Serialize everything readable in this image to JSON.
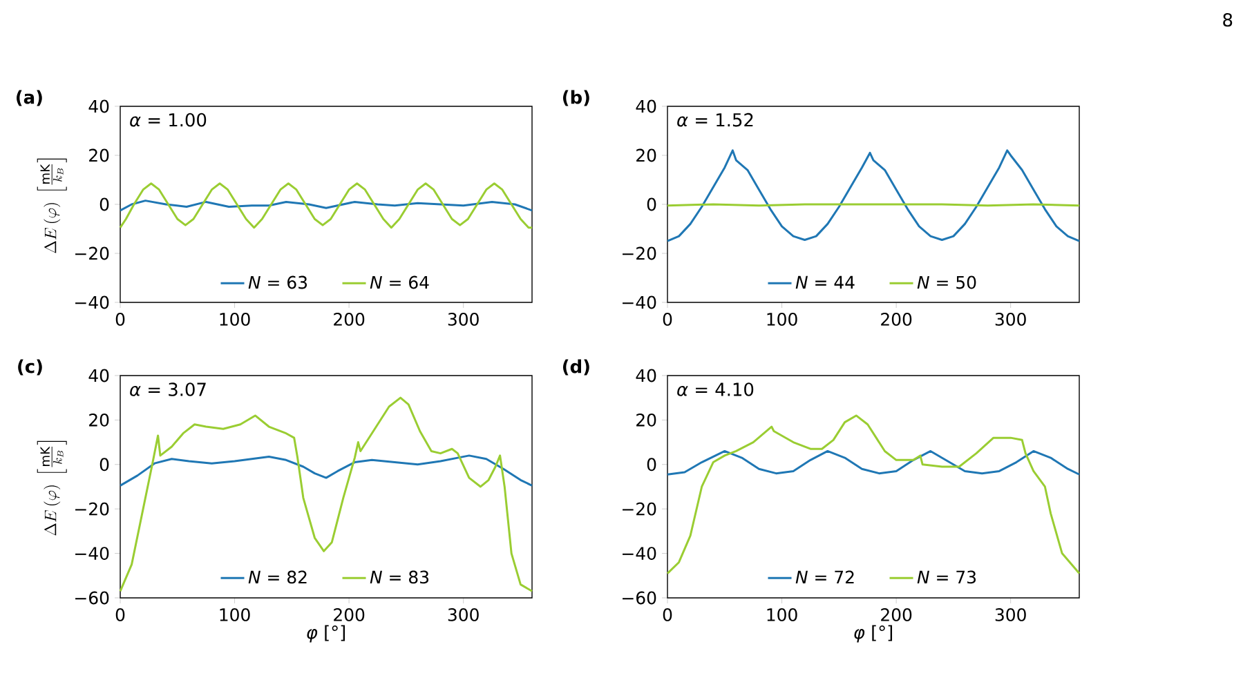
{
  "chart_data": [
    {
      "type": "line",
      "title": "(a)",
      "ylabel": "\\Delta E\\,(\\varphi)\\;\\left[\\frac{\\mathrm{mK}}{k_B}\\right]",
      "annotations": [
        "*α* = 1.00"
      ],
      "legend": "bottom",
      "xlim": [
        0,
        360
      ],
      "ylim": [
        -40,
        40
      ],
      "xticks": [
        0,
        100,
        200,
        300
      ],
      "yticks": [
        {
          "value": -40,
          "label": "−40"
        },
        {
          "value": -20,
          "label": "−20"
        },
        0,
        20,
        40
      ],
      "series": [
        {
          "name": "*N* = 63",
          "color": "#1f77b4",
          "x": [
            0,
            10,
            22,
            40,
            58,
            75,
            95,
            115,
            130,
            145,
            165,
            180,
            205,
            225,
            240,
            260,
            280,
            300,
            325,
            345,
            360
          ],
          "values": [
            -2.5,
            0,
            1.5,
            0,
            -1,
            1,
            -1,
            -0.5,
            -0.5,
            1,
            0,
            -1.5,
            1,
            0,
            -0.5,
            0.5,
            0,
            -0.5,
            1,
            0,
            -2.5
          ]
        },
        {
          "name": "*N* = 64",
          "color": "#9acd32",
          "x": [
            0,
            5,
            12,
            20,
            27,
            34,
            42,
            50,
            57,
            64,
            72,
            80,
            87,
            94,
            102,
            110,
            117,
            124,
            132,
            140,
            147,
            154,
            162,
            170,
            177,
            184,
            192,
            200,
            207,
            214,
            222,
            230,
            237,
            244,
            252,
            260,
            267,
            274,
            282,
            290,
            297,
            304,
            312,
            320,
            327,
            334,
            342,
            350,
            357,
            360
          ],
          "values": [
            -9.5,
            -6,
            0,
            6,
            8.5,
            6,
            0,
            -6,
            -8.5,
            -6,
            0,
            6,
            8.5,
            6,
            0,
            -6,
            -9.5,
            -6,
            0,
            6,
            8.5,
            6,
            0,
            -6,
            -8.5,
            -6,
            0,
            6,
            8.5,
            6,
            0,
            -6,
            -9.5,
            -6,
            0,
            6,
            8.5,
            6,
            0,
            -6,
            -8.5,
            -6,
            0,
            6,
            8.5,
            6,
            0,
            -6,
            -9.5,
            -9.5
          ]
        }
      ]
    },
    {
      "type": "line",
      "title": "(b)",
      "annotations": [
        "*α* = 1.52",
        "8"
      ],
      "legend": "bottom",
      "xlim": [
        0,
        360
      ],
      "ylim": [
        -40,
        40
      ],
      "xticks": [
        0,
        100,
        200,
        300
      ],
      "yticks": [
        {
          "value": -40,
          "label": "−40"
        },
        {
          "value": -20,
          "label": "−20"
        },
        0,
        20,
        40
      ],
      "series": [
        {
          "name": "*N* = 44",
          "color": "#1f77b4",
          "x": [
            0,
            10,
            20,
            30,
            40,
            50,
            57,
            60,
            70,
            80,
            90,
            100,
            110,
            120,
            130,
            140,
            150,
            160,
            170,
            177,
            180,
            190,
            200,
            210,
            220,
            230,
            240,
            250,
            260,
            270,
            280,
            290,
            297,
            300,
            310,
            320,
            330,
            340,
            350,
            360
          ],
          "values": [
            -15,
            -13,
            -8,
            -1,
            7,
            15,
            22,
            18,
            14,
            6,
            -2,
            -9,
            -13,
            -14.5,
            -13,
            -8,
            -1,
            7,
            15,
            21,
            18,
            14,
            6,
            -2,
            -9,
            -13,
            -14.5,
            -13,
            -8,
            -1,
            7,
            15,
            22,
            20,
            14,
            6,
            -2,
            -9,
            -13,
            -15
          ]
        },
        {
          "name": "*N* = 50",
          "color": "#9acd32",
          "x": [
            0,
            40,
            80,
            120,
            160,
            200,
            240,
            280,
            320,
            360
          ],
          "values": [
            -0.5,
            0,
            -0.5,
            0,
            0,
            0,
            0,
            -0.5,
            0,
            -0.5
          ]
        }
      ]
    },
    {
      "type": "line",
      "title": "(c)",
      "xlabel": "*φ* [°]",
      "ylabel": "\\Delta E\\,(\\varphi)\\;\\left[\\frac{\\mathrm{mK}}{k_B}\\right]",
      "annotations": [
        "*α* = 3.07"
      ],
      "legend": "bottom",
      "xlim": [
        0,
        360
      ],
      "ylim": [
        -60,
        40
      ],
      "xticks": [
        0,
        100,
        200,
        300
      ],
      "yticks": [
        {
          "value": -60,
          "label": "−60"
        },
        {
          "value": -40,
          "label": "−40"
        },
        {
          "value": -20,
          "label": "−20"
        },
        0,
        20,
        40
      ],
      "series": [
        {
          "name": "*N* = 82",
          "color": "#1f77b4",
          "x": [
            0,
            15,
            30,
            45,
            60,
            80,
            100,
            115,
            130,
            145,
            160,
            170,
            180,
            190,
            205,
            220,
            240,
            260,
            280,
            295,
            305,
            320,
            335,
            350,
            360
          ],
          "values": [
            -9.5,
            -5,
            0.5,
            2.5,
            1.5,
            0.5,
            1.5,
            2.5,
            3.5,
            2,
            -1,
            -4,
            -6,
            -3,
            1,
            2,
            1,
            0,
            1.5,
            3,
            4,
            2.5,
            -2,
            -7,
            -9.5
          ]
        },
        {
          "name": "*N* = 83",
          "color": "#9acd32",
          "x": [
            0,
            10,
            20,
            28,
            33,
            35,
            45,
            55,
            65,
            75,
            90,
            105,
            118,
            130,
            145,
            152,
            155,
            160,
            170,
            178,
            185,
            195,
            205,
            208,
            210,
            220,
            235,
            245,
            252,
            262,
            272,
            280,
            290,
            295,
            305,
            315,
            322,
            328,
            332,
            336,
            342,
            350,
            360
          ],
          "values": [
            -57,
            -45,
            -20,
            0,
            13,
            4,
            8,
            14,
            18,
            17,
            16,
            18,
            22,
            17,
            14,
            12,
            3,
            -15,
            -33,
            -39,
            -35,
            -15,
            3,
            10,
            6,
            14,
            26,
            30,
            27,
            15,
            6,
            5,
            7,
            5,
            -6,
            -10,
            -7,
            -1,
            4,
            -10,
            -40,
            -54,
            -57
          ]
        }
      ]
    },
    {
      "type": "line",
      "title": "(d)",
      "xlabel": "*φ* [°]",
      "annotations": [
        "*α* = 4.10"
      ],
      "legend": "bottom",
      "xlim": [
        0,
        360
      ],
      "ylim": [
        -60,
        40
      ],
      "xticks": [
        0,
        100,
        200,
        300
      ],
      "yticks": [
        {
          "value": -60,
          "label": "−60"
        },
        {
          "value": -40,
          "label": "−40"
        },
        {
          "value": -20,
          "label": "−20"
        },
        0,
        20,
        40
      ],
      "series": [
        {
          "name": "*N* = 72",
          "color": "#1f77b4",
          "x": [
            0,
            15,
            30,
            50,
            65,
            80,
            95,
            110,
            125,
            140,
            155,
            170,
            185,
            200,
            215,
            230,
            245,
            260,
            275,
            290,
            305,
            320,
            335,
            350,
            360
          ],
          "values": [
            -4.5,
            -3.5,
            1,
            6,
            3,
            -2,
            -4,
            -3,
            2,
            6,
            3,
            -2,
            -4,
            -3,
            2,
            6,
            1.5,
            -3,
            -4,
            -3,
            1,
            6,
            3,
            -2,
            -4.5
          ]
        },
        {
          "name": "*N* = 73",
          "color": "#9acd32",
          "x": [
            0,
            10,
            20,
            30,
            40,
            50,
            60,
            75,
            91,
            93,
            110,
            125,
            135,
            145,
            155,
            165,
            175,
            190,
            200,
            215,
            221,
            223,
            240,
            255,
            270,
            285,
            300,
            310,
            313,
            320,
            330,
            335,
            345,
            360
          ],
          "values": [
            -49,
            -44,
            -32,
            -10,
            1,
            4,
            6,
            10,
            17,
            15,
            10,
            7,
            7,
            11,
            19,
            22,
            18,
            6,
            2,
            2,
            4,
            0,
            -1,
            -1,
            5,
            12,
            12,
            11,
            5,
            -3,
            -10,
            -22,
            -40,
            -49
          ]
        }
      ]
    }
  ]
}
